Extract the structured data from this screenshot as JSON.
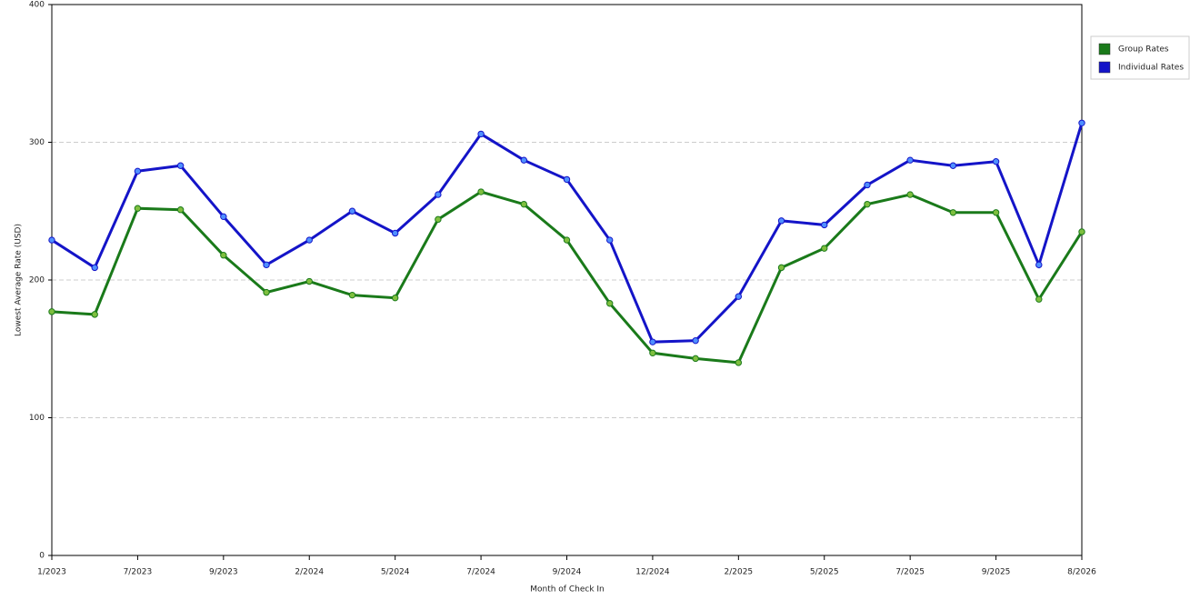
{
  "chart_data": {
    "type": "line",
    "y_label": "Lowest Average Rate (USD)",
    "x_label": "Month of Check In",
    "categories": [
      "1/2023",
      null,
      "7/2023",
      null,
      "9/2023",
      null,
      "2/2024",
      null,
      "5/2024",
      null,
      "7/2024",
      null,
      "9/2024",
      null,
      "12/2024",
      null,
      "2/2025",
      null,
      "5/2025",
      null,
      "7/2025",
      null,
      "9/2025",
      null,
      "8/2026"
    ],
    "series": [
      {
        "name": "Group Rates",
        "color": "#1a7a1a",
        "values": [
          177,
          175,
          252,
          251,
          218,
          191,
          199,
          189,
          187,
          244,
          264,
          255,
          229,
          183,
          147,
          143,
          140,
          209,
          223,
          255,
          262,
          249,
          249,
          186,
          235
        ]
      },
      {
        "name": "Individual Rates",
        "color": "#1414c8",
        "values": [
          229,
          209,
          279,
          283,
          246,
          211,
          229,
          250,
          234,
          262,
          306,
          287,
          273,
          229,
          155,
          156,
          188,
          243,
          240,
          269,
          287,
          283,
          286,
          211,
          314
        ]
      }
    ],
    "ylim": [
      0,
      400
    ],
    "yticks": [
      0,
      100,
      200,
      300,
      400
    ],
    "grid": true
  }
}
